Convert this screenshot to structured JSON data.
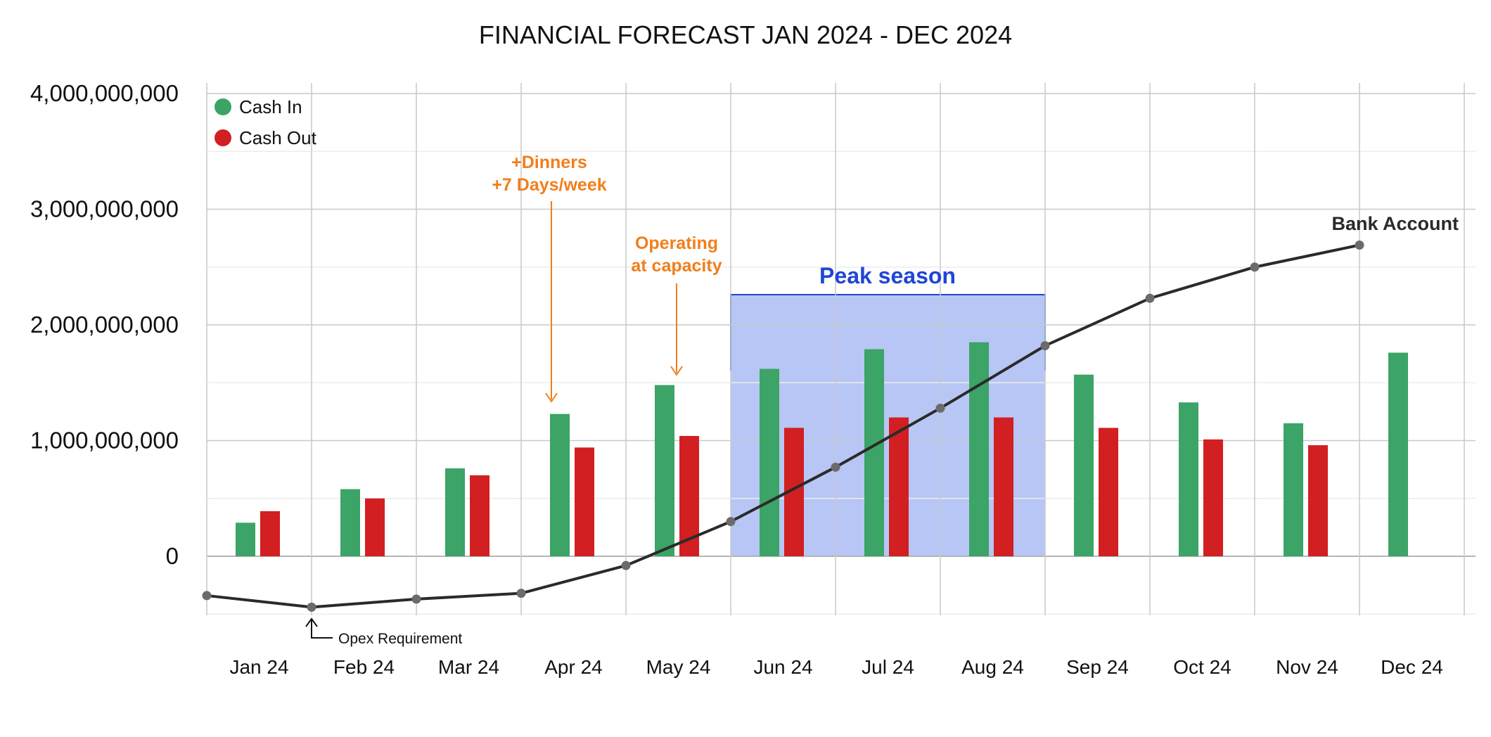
{
  "chart_data": {
    "type": "bar",
    "title": "FINANCIAL FORECAST JAN 2024 - DEC 2024",
    "categories": [
      "Jan 24",
      "Feb 24",
      "Mar 24",
      "Apr 24",
      "May 24",
      "Jun 24",
      "Jul 24",
      "Aug 24",
      "Sep 24",
      "Oct 24",
      "Nov 24",
      "Dec 24"
    ],
    "y_ticks": [
      "4,000,000,000",
      "3,000,000,000",
      "2,000,000,000",
      "1,000,000,000",
      "0"
    ],
    "y_tick_values": [
      4000000000,
      3000000000,
      2000000000,
      1000000000,
      0
    ],
    "ylim": [
      -600000000,
      4100000000
    ],
    "grid": true,
    "legend_position": "top-left",
    "series": [
      {
        "name": "Cash In",
        "kind": "bar",
        "color": "#3ba466",
        "values": [
          290000000,
          580000000,
          760000000,
          1230000000,
          1480000000,
          1620000000,
          1790000000,
          1850000000,
          1570000000,
          1330000000,
          1150000000,
          1760000000
        ]
      },
      {
        "name": "Cash Out",
        "kind": "bar",
        "color": "#d11f22",
        "values": [
          390000000,
          500000000,
          700000000,
          940000000,
          1040000000,
          1110000000,
          1200000000,
          1200000000,
          1110000000,
          1010000000,
          960000000,
          null
        ]
      }
    ],
    "line": {
      "label": "Bank Account",
      "color": "#2a2a2a",
      "marker_color": "#6b6b6b",
      "points": [
        {
          "month": "Jan 24",
          "value": -340000000
        },
        {
          "month": "Feb 24",
          "value": -440000000
        },
        {
          "month": "Mar 24",
          "value": -370000000
        },
        {
          "month": "Apr 24",
          "value": -320000000
        },
        {
          "month": "May 24",
          "value": -80000000
        },
        {
          "month": "Jun 24",
          "value": 300000000
        },
        {
          "month": "Jul 24",
          "value": 770000000
        },
        {
          "month": "Aug 24",
          "value": 1280000000
        },
        {
          "month": "Sep 24",
          "value": 1820000000
        },
        {
          "month": "Oct 24",
          "value": 2230000000
        },
        {
          "month": "Nov 24",
          "value": 2500000000
        },
        {
          "month": "Dec 24",
          "value": 2690000000
        }
      ]
    },
    "annotations": {
      "dinners_line1": "+Dinners",
      "dinners_line2": "+7 Days/week",
      "dinners_month": "Apr 24",
      "capacity_line1": "Operating",
      "capacity_line2": "at capacity",
      "capacity_month": "May 24",
      "peak_label": "Peak season",
      "peak_from": "Jun 24",
      "peak_to": "Aug 24",
      "opex_label": "Opex Requirement",
      "opex_month": "Feb 24",
      "bank_label": "Bank Account"
    },
    "colors": {
      "peak_fill": "#b7c6f4",
      "peak_border": "#1f45d6",
      "annotation_orange": "#f07f1c",
      "grid": "#c9c9c9"
    }
  }
}
